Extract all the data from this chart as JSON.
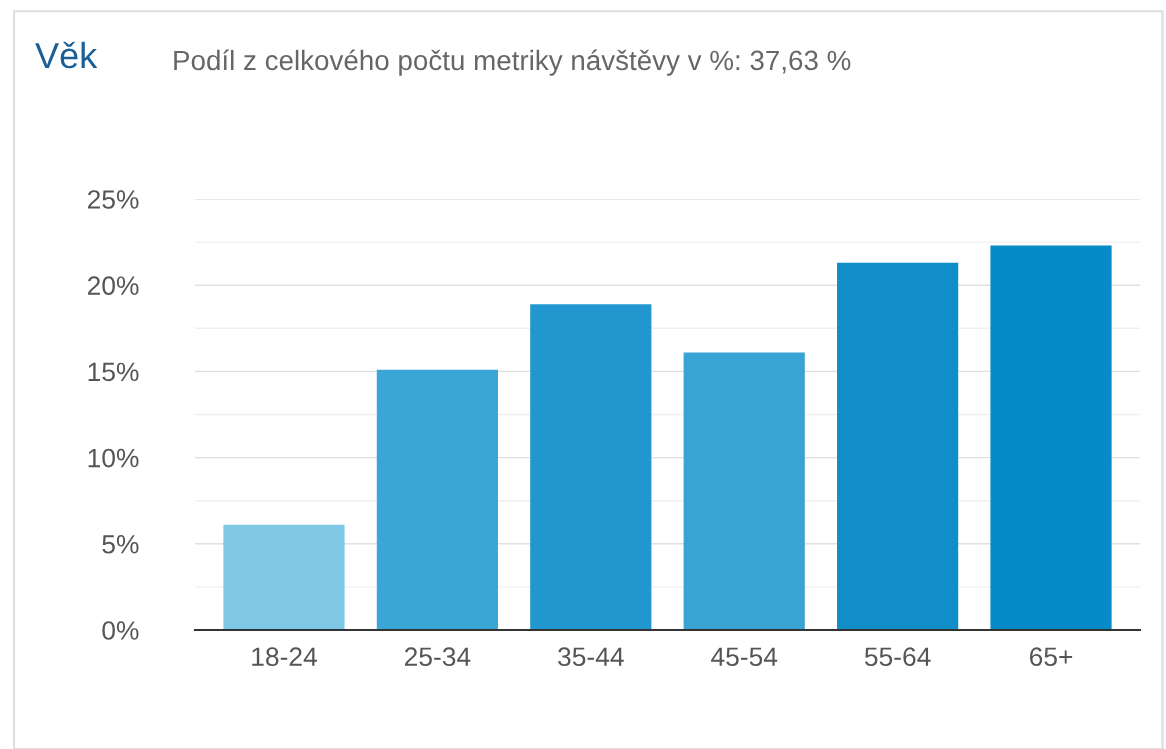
{
  "chart_data": {
    "type": "bar",
    "title": "Věk",
    "subtitle": "Podíl z celkového počtu metriky návštěvy v %: 37,63 %",
    "categories": [
      "18-24",
      "25-34",
      "35-44",
      "45-54",
      "55-64",
      "65+"
    ],
    "values": [
      6.1,
      15.1,
      18.9,
      16.1,
      21.3,
      22.3
    ],
    "colors": [
      "#7ec8e6",
      "#3aa6d6",
      "#2196cf",
      "#39a3d4",
      "#118dc9",
      "#078bc7"
    ],
    "ylim": [
      0,
      25
    ],
    "yticks": [
      {
        "value": 0,
        "label": "0%"
      },
      {
        "value": 2.5,
        "label": null
      },
      {
        "value": 5,
        "label": "5%"
      },
      {
        "value": 7.5,
        "label": null
      },
      {
        "value": 10,
        "label": "10%"
      },
      {
        "value": 12.5,
        "label": null
      },
      {
        "value": 15,
        "label": "15%"
      },
      {
        "value": 17.5,
        "label": null
      },
      {
        "value": 20,
        "label": "20%"
      },
      {
        "value": 22.5,
        "label": null
      },
      {
        "value": 25,
        "label": "25%"
      }
    ],
    "grid": "y"
  }
}
